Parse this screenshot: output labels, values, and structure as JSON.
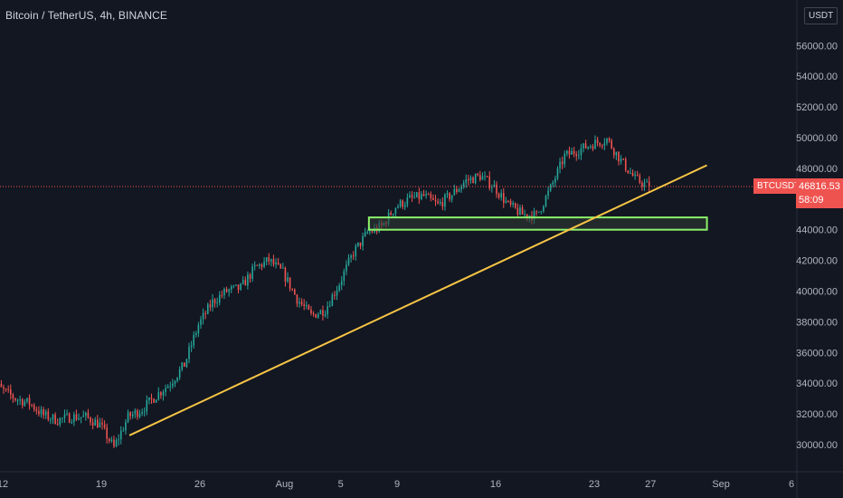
{
  "header": {
    "symbol_title": "Bitcoin / TetherUS, 4h, BINANCE",
    "currency_label": "USDT"
  },
  "colors": {
    "background": "#131722",
    "up": "#26a69a",
    "down": "#ef5350",
    "trendline": "#f7c545",
    "zone_border": "#8cf26a",
    "zone_fill": "#2f3a33"
  },
  "price_tag": {
    "symbol": "BTCUSDT",
    "price": "46816.53",
    "countdown": "58:09"
  },
  "chart_data": {
    "type": "candlestick",
    "title": "Bitcoin / TetherUS, 4h, BINANCE",
    "ylim": [
      28900,
      58000
    ],
    "y_ticks": [
      "30000.00",
      "32000.00",
      "34000.00",
      "36000.00",
      "38000.00",
      "40000.00",
      "42000.00",
      "44000.00",
      "46000.00",
      "48000.00",
      "50000.00",
      "52000.00",
      "54000.00",
      "56000.00"
    ],
    "x_ticks": [
      "12",
      "19",
      "26",
      "Aug",
      "5",
      "9",
      "16",
      "23",
      "27",
      "Sep",
      "6"
    ],
    "x_tick_dates": [
      "2021-07-12",
      "2021-07-19",
      "2021-07-26",
      "2021-08-01",
      "2021-08-05",
      "2021-08-09",
      "2021-08-16",
      "2021-08-23",
      "2021-08-27",
      "2021-09-01",
      "2021-09-06"
    ],
    "current_price": 46816.53,
    "price_path": [
      [
        "2021-07-11",
        34400
      ],
      [
        "2021-07-12",
        33600
      ],
      [
        "2021-07-13",
        33000
      ],
      [
        "2021-07-14",
        32700
      ],
      [
        "2021-07-15",
        31900
      ],
      [
        "2021-07-16",
        31600
      ],
      [
        "2021-07-17",
        31800
      ],
      [
        "2021-07-18",
        31800
      ],
      [
        "2021-07-19",
        31300
      ],
      [
        "2021-07-20",
        29800
      ],
      [
        "2021-07-21",
        31800
      ],
      [
        "2021-07-22",
        32300
      ],
      [
        "2021-07-23",
        33200
      ],
      [
        "2021-07-24",
        34000
      ],
      [
        "2021-07-25",
        35200
      ],
      [
        "2021-07-26",
        37800
      ],
      [
        "2021-07-27",
        39300
      ],
      [
        "2021-07-28",
        40000
      ],
      [
        "2021-07-29",
        40200
      ],
      [
        "2021-07-30",
        41500
      ],
      [
        "2021-07-31",
        42000
      ],
      [
        "2021-08-01",
        41200
      ],
      [
        "2021-08-02",
        39500
      ],
      [
        "2021-08-03",
        38400
      ],
      [
        "2021-08-04",
        38800
      ],
      [
        "2021-08-05",
        40500
      ],
      [
        "2021-08-06",
        42500
      ],
      [
        "2021-08-07",
        43800
      ],
      [
        "2021-08-08",
        44200
      ],
      [
        "2021-08-09",
        45500
      ],
      [
        "2021-08-10",
        46000
      ],
      [
        "2021-08-11",
        46200
      ],
      [
        "2021-08-12",
        45600
      ],
      [
        "2021-08-13",
        46300
      ],
      [
        "2021-08-14",
        47200
      ],
      [
        "2021-08-15",
        47500
      ],
      [
        "2021-08-16",
        46800
      ],
      [
        "2021-08-17",
        45600
      ],
      [
        "2021-08-18",
        45000
      ],
      [
        "2021-08-19",
        44900
      ],
      [
        "2021-08-20",
        46700
      ],
      [
        "2021-08-21",
        48800
      ],
      [
        "2021-08-22",
        49200
      ],
      [
        "2021-08-23",
        49600
      ],
      [
        "2021-08-24",
        49900
      ],
      [
        "2021-08-25",
        48500
      ],
      [
        "2021-08-26",
        47300
      ],
      [
        "2021-08-27",
        46816.53
      ]
    ],
    "annotations": [
      {
        "type": "trendline",
        "from": [
          "2021-07-21",
          30600
        ],
        "to": [
          "2021-08-31",
          48200
        ]
      },
      {
        "type": "zone",
        "from": "2021-08-07",
        "to": "2021-08-31",
        "low": 44000,
        "high": 44800
      }
    ],
    "grid": false,
    "legend": "none"
  }
}
